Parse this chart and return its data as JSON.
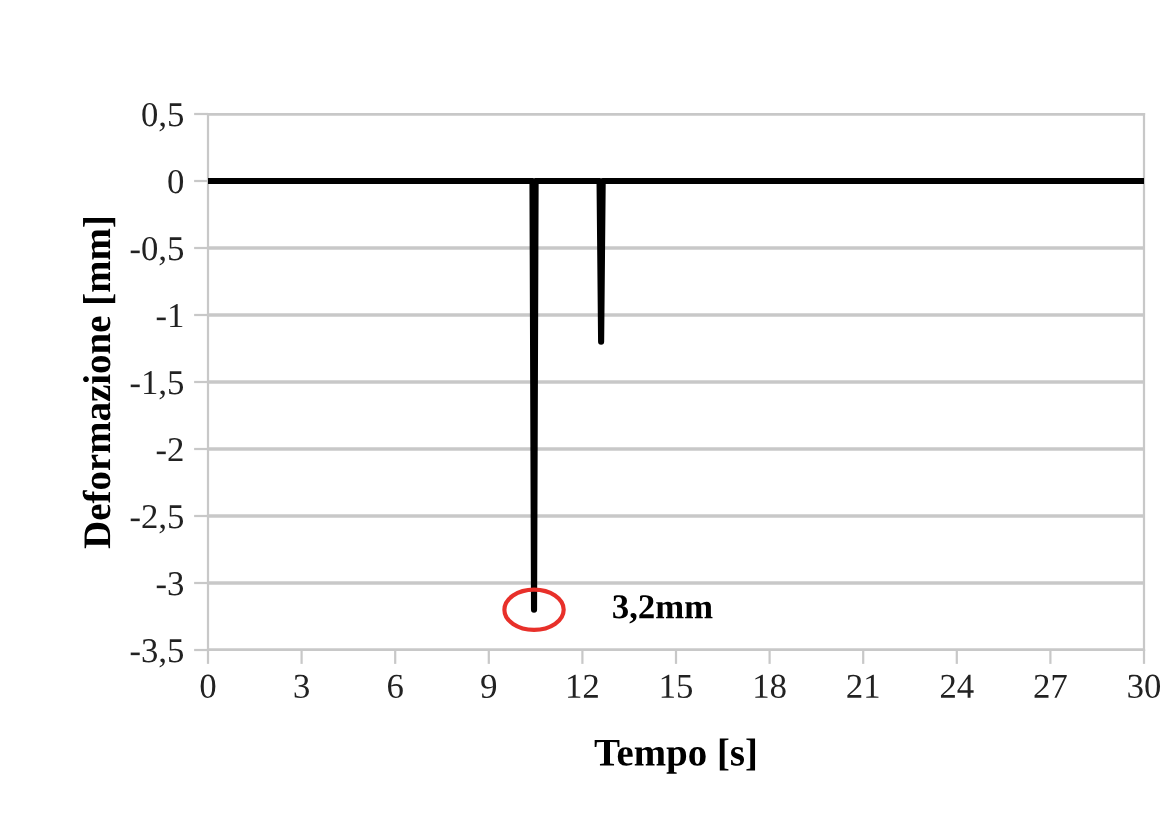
{
  "chart_data": {
    "type": "line",
    "xlabel": "Tempo [s]",
    "ylabel": "Deformazione [mm]",
    "x": [
      0,
      10.4,
      10.45,
      10.5,
      12.55,
      12.6,
      12.65,
      30
    ],
    "series": [
      {
        "color": "#000000",
        "values": [
          0,
          0,
          -3.2,
          0,
          0,
          -1.2,
          0,
          0
        ]
      }
    ],
    "xlim": [
      0,
      30
    ],
    "xticks": [
      0,
      3,
      6,
      9,
      12,
      15,
      18,
      21,
      24,
      27,
      30
    ],
    "ylim": [
      -3.5,
      0.5
    ],
    "yticks": [
      {
        "value": 0.5,
        "label": "0,5"
      },
      0,
      {
        "value": -0.5,
        "label": "-0,5"
      },
      -1,
      {
        "value": -1.5,
        "label": "-1,5"
      },
      -2,
      {
        "value": -2.5,
        "label": "-2,5"
      },
      -3,
      {
        "value": -3.5,
        "label": "-3,5"
      }
    ],
    "grid": "y",
    "marker": "none",
    "line_style": "solid",
    "annotations": [
      {
        "text": "3,2mm",
        "x": 10.45,
        "y": -3.2
      }
    ]
  }
}
